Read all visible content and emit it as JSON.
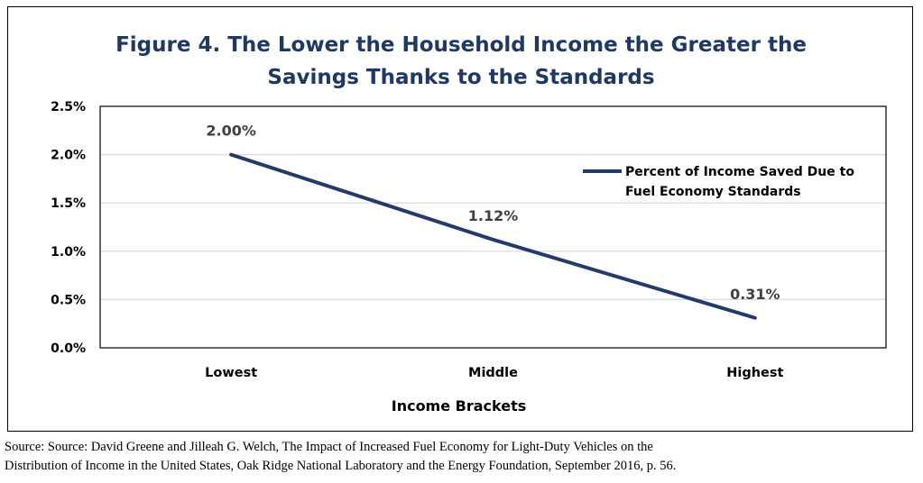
{
  "chart_data": {
    "type": "line",
    "title_lines": [
      "Figure 4. The Lower the Household Income the Greater the",
      "Savings Thanks to the Standards"
    ],
    "categories": [
      "Lowest",
      "Middle",
      "Highest"
    ],
    "series": [
      {
        "name_lines": [
          "Percent of Income Saved Due to",
          "Fuel Economy Standards"
        ],
        "values": [
          2.0,
          1.12,
          0.31
        ],
        "labels": [
          "2.00%",
          "1.12%",
          "0.31%"
        ]
      }
    ],
    "xlabel": "Income Brackets",
    "ylabel": "",
    "ylim": [
      0,
      2.5
    ],
    "yticks": [
      "0.0%",
      "0.5%",
      "1.0%",
      "1.5%",
      "2.0%",
      "2.5%"
    ],
    "grid": true,
    "legend_position": "top-right",
    "line_color": "#243a6b"
  },
  "source_lines": [
    "Source: Source: David Greene and Jilleah G. Welch, The Impact of Increased Fuel Economy for Light-Duty Vehicles on the",
    "Distribution of Income in the United States, Oak Ridge National Laboratory and the Energy Foundation, September 2016, p. 56."
  ]
}
